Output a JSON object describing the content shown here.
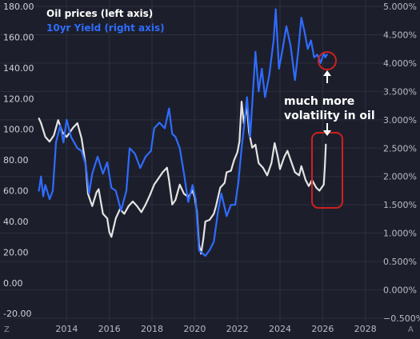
{
  "legend": {
    "oil_label": "Oil prices (left axis)",
    "yield_label": "10yr Yield (right axis)"
  },
  "annotation": {
    "line1": "much more",
    "line2": "volatility in oil"
  },
  "axis_footer": {
    "left": "Z",
    "right": "A"
  },
  "colors": {
    "background": "#1c1f2b",
    "grid": "#2b2f3c",
    "oil": "#e4e4e4",
    "yield": "#2f6bff",
    "highlight": "#d0201f",
    "left_tick_text": "#cfd2d8",
    "right_tick_text": "#b8bcc4"
  },
  "chart_data": {
    "type": "line",
    "x_range": [
      2012.6,
      2028.5
    ],
    "x_ticks": [
      2014,
      2016,
      2018,
      2020,
      2022,
      2024,
      2026,
      2028
    ],
    "left_axis": {
      "range": [
        -23,
        180
      ],
      "ticks": [
        0,
        20,
        40,
        60,
        80,
        100,
        120,
        140,
        160,
        180
      ],
      "tick_labels": [
        "0.00",
        "20.00",
        "40.00",
        "60.00",
        "80.00",
        "100.00",
        "120.00",
        "140.00",
        "160.00",
        "180.00"
      ],
      "extra_labels": [
        {
          "value": -20,
          "label": "-20.00"
        }
      ]
    },
    "right_axis": {
      "range": [
        -0.5,
        5.0
      ],
      "ticks": [
        -0.5,
        0,
        0.5,
        1.0,
        1.5,
        2.0,
        2.5,
        3.0,
        3.5,
        4.0,
        4.5,
        5.0
      ],
      "tick_labels": [
        "−0.500%",
        "0.000%",
        "0.500%",
        "1.000%",
        "1.500%",
        "2.000%",
        "2.500%",
        "3.000%",
        "3.500%",
        "4.000%",
        "4.500%",
        "5.000%"
      ]
    },
    "series": [
      {
        "name": "Oil prices (left axis)",
        "axis": "left",
        "points": [
          [
            2012.7,
            107
          ],
          [
            2012.8,
            104
          ],
          [
            2013.0,
            95
          ],
          [
            2013.2,
            92
          ],
          [
            2013.4,
            96
          ],
          [
            2013.6,
            106
          ],
          [
            2013.8,
            98
          ],
          [
            2014.0,
            95
          ],
          [
            2014.3,
            101
          ],
          [
            2014.5,
            104
          ],
          [
            2014.7,
            94
          ],
          [
            2014.9,
            76
          ],
          [
            2015.0,
            58
          ],
          [
            2015.2,
            50
          ],
          [
            2015.4,
            59
          ],
          [
            2015.5,
            61
          ],
          [
            2015.7,
            45
          ],
          [
            2015.9,
            42
          ],
          [
            2016.0,
            33
          ],
          [
            2016.1,
            30
          ],
          [
            2016.3,
            42
          ],
          [
            2016.5,
            48
          ],
          [
            2016.7,
            45
          ],
          [
            2016.9,
            50
          ],
          [
            2017.1,
            53
          ],
          [
            2017.3,
            50
          ],
          [
            2017.5,
            46
          ],
          [
            2017.7,
            51
          ],
          [
            2017.9,
            57
          ],
          [
            2018.1,
            64
          ],
          [
            2018.3,
            68
          ],
          [
            2018.5,
            72
          ],
          [
            2018.7,
            75
          ],
          [
            2018.8,
            67
          ],
          [
            2018.95,
            51
          ],
          [
            2019.1,
            54
          ],
          [
            2019.3,
            64
          ],
          [
            2019.5,
            58
          ],
          [
            2019.7,
            56
          ],
          [
            2019.9,
            60
          ],
          [
            2020.0,
            56
          ],
          [
            2020.1,
            47
          ],
          [
            2020.2,
            25
          ],
          [
            2020.3,
            19
          ],
          [
            2020.4,
            28
          ],
          [
            2020.5,
            40
          ],
          [
            2020.7,
            41
          ],
          [
            2020.9,
            45
          ],
          [
            2021.0,
            50
          ],
          [
            2021.2,
            62
          ],
          [
            2021.4,
            65
          ],
          [
            2021.5,
            72
          ],
          [
            2021.7,
            73
          ],
          [
            2021.85,
            80
          ],
          [
            2022.0,
            85
          ],
          [
            2022.1,
            92
          ],
          [
            2022.2,
            118
          ],
          [
            2022.3,
            104
          ],
          [
            2022.45,
            115
          ],
          [
            2022.55,
            98
          ],
          [
            2022.7,
            88
          ],
          [
            2022.85,
            90
          ],
          [
            2023.0,
            78
          ],
          [
            2023.2,
            75
          ],
          [
            2023.4,
            70
          ],
          [
            2023.6,
            78
          ],
          [
            2023.75,
            91
          ],
          [
            2023.9,
            82
          ],
          [
            2024.0,
            74
          ],
          [
            2024.2,
            82
          ],
          [
            2024.35,
            86
          ],
          [
            2024.5,
            80
          ],
          [
            2024.7,
            72
          ],
          [
            2024.9,
            70
          ],
          [
            2025.0,
            76
          ],
          [
            2025.2,
            67
          ],
          [
            2025.35,
            63
          ],
          [
            2025.5,
            67
          ],
          [
            2025.7,
            62
          ],
          [
            2025.85,
            60
          ],
          [
            2025.95,
            62
          ],
          [
            2026.05,
            64
          ],
          [
            2026.1,
            75
          ],
          [
            2026.15,
            90
          ]
        ]
      },
      {
        "name": "10yr Yield (right axis)",
        "axis": "right",
        "points": [
          [
            2012.7,
            1.75
          ],
          [
            2012.8,
            2.0
          ],
          [
            2012.9,
            1.65
          ],
          [
            2013.0,
            1.85
          ],
          [
            2013.2,
            1.6
          ],
          [
            2013.35,
            1.75
          ],
          [
            2013.5,
            2.6
          ],
          [
            2013.7,
            2.9
          ],
          [
            2013.85,
            2.6
          ],
          [
            2014.0,
            3.0
          ],
          [
            2014.2,
            2.7
          ],
          [
            2014.5,
            2.5
          ],
          [
            2014.7,
            2.45
          ],
          [
            2014.9,
            2.2
          ],
          [
            2015.05,
            1.7
          ],
          [
            2015.2,
            2.05
          ],
          [
            2015.45,
            2.35
          ],
          [
            2015.7,
            2.05
          ],
          [
            2015.9,
            2.25
          ],
          [
            2016.1,
            1.8
          ],
          [
            2016.3,
            1.75
          ],
          [
            2016.55,
            1.4
          ],
          [
            2016.8,
            1.75
          ],
          [
            2016.95,
            2.5
          ],
          [
            2017.2,
            2.4
          ],
          [
            2017.45,
            2.15
          ],
          [
            2017.7,
            2.35
          ],
          [
            2017.95,
            2.45
          ],
          [
            2018.1,
            2.85
          ],
          [
            2018.35,
            2.95
          ],
          [
            2018.6,
            2.85
          ],
          [
            2018.8,
            3.2
          ],
          [
            2018.95,
            2.75
          ],
          [
            2019.1,
            2.7
          ],
          [
            2019.3,
            2.5
          ],
          [
            2019.5,
            2.05
          ],
          [
            2019.7,
            1.55
          ],
          [
            2019.9,
            1.85
          ],
          [
            2020.05,
            1.6
          ],
          [
            2020.2,
            0.7
          ],
          [
            2020.35,
            0.65
          ],
          [
            2020.5,
            0.6
          ],
          [
            2020.7,
            0.7
          ],
          [
            2020.9,
            0.85
          ],
          [
            2021.1,
            1.4
          ],
          [
            2021.25,
            1.7
          ],
          [
            2021.5,
            1.3
          ],
          [
            2021.7,
            1.5
          ],
          [
            2021.9,
            1.5
          ],
          [
            2022.05,
            1.9
          ],
          [
            2022.2,
            2.5
          ],
          [
            2022.35,
            3.0
          ],
          [
            2022.45,
            3.4
          ],
          [
            2022.6,
            2.7
          ],
          [
            2022.75,
            3.6
          ],
          [
            2022.85,
            4.2
          ],
          [
            2023.0,
            3.5
          ],
          [
            2023.15,
            3.9
          ],
          [
            2023.3,
            3.4
          ],
          [
            2023.5,
            3.8
          ],
          [
            2023.7,
            4.4
          ],
          [
            2023.8,
            4.95
          ],
          [
            2023.95,
            3.9
          ],
          [
            2024.1,
            4.2
          ],
          [
            2024.3,
            4.65
          ],
          [
            2024.5,
            4.3
          ],
          [
            2024.7,
            3.7
          ],
          [
            2024.85,
            4.2
          ],
          [
            2025.0,
            4.8
          ],
          [
            2025.15,
            4.55
          ],
          [
            2025.3,
            4.25
          ],
          [
            2025.45,
            4.4
          ],
          [
            2025.6,
            4.1
          ],
          [
            2025.75,
            4.15
          ],
          [
            2025.9,
            4.0
          ],
          [
            2026.05,
            4.18
          ],
          [
            2026.12,
            4.1
          ],
          [
            2026.2,
            4.15
          ]
        ]
      }
    ]
  }
}
